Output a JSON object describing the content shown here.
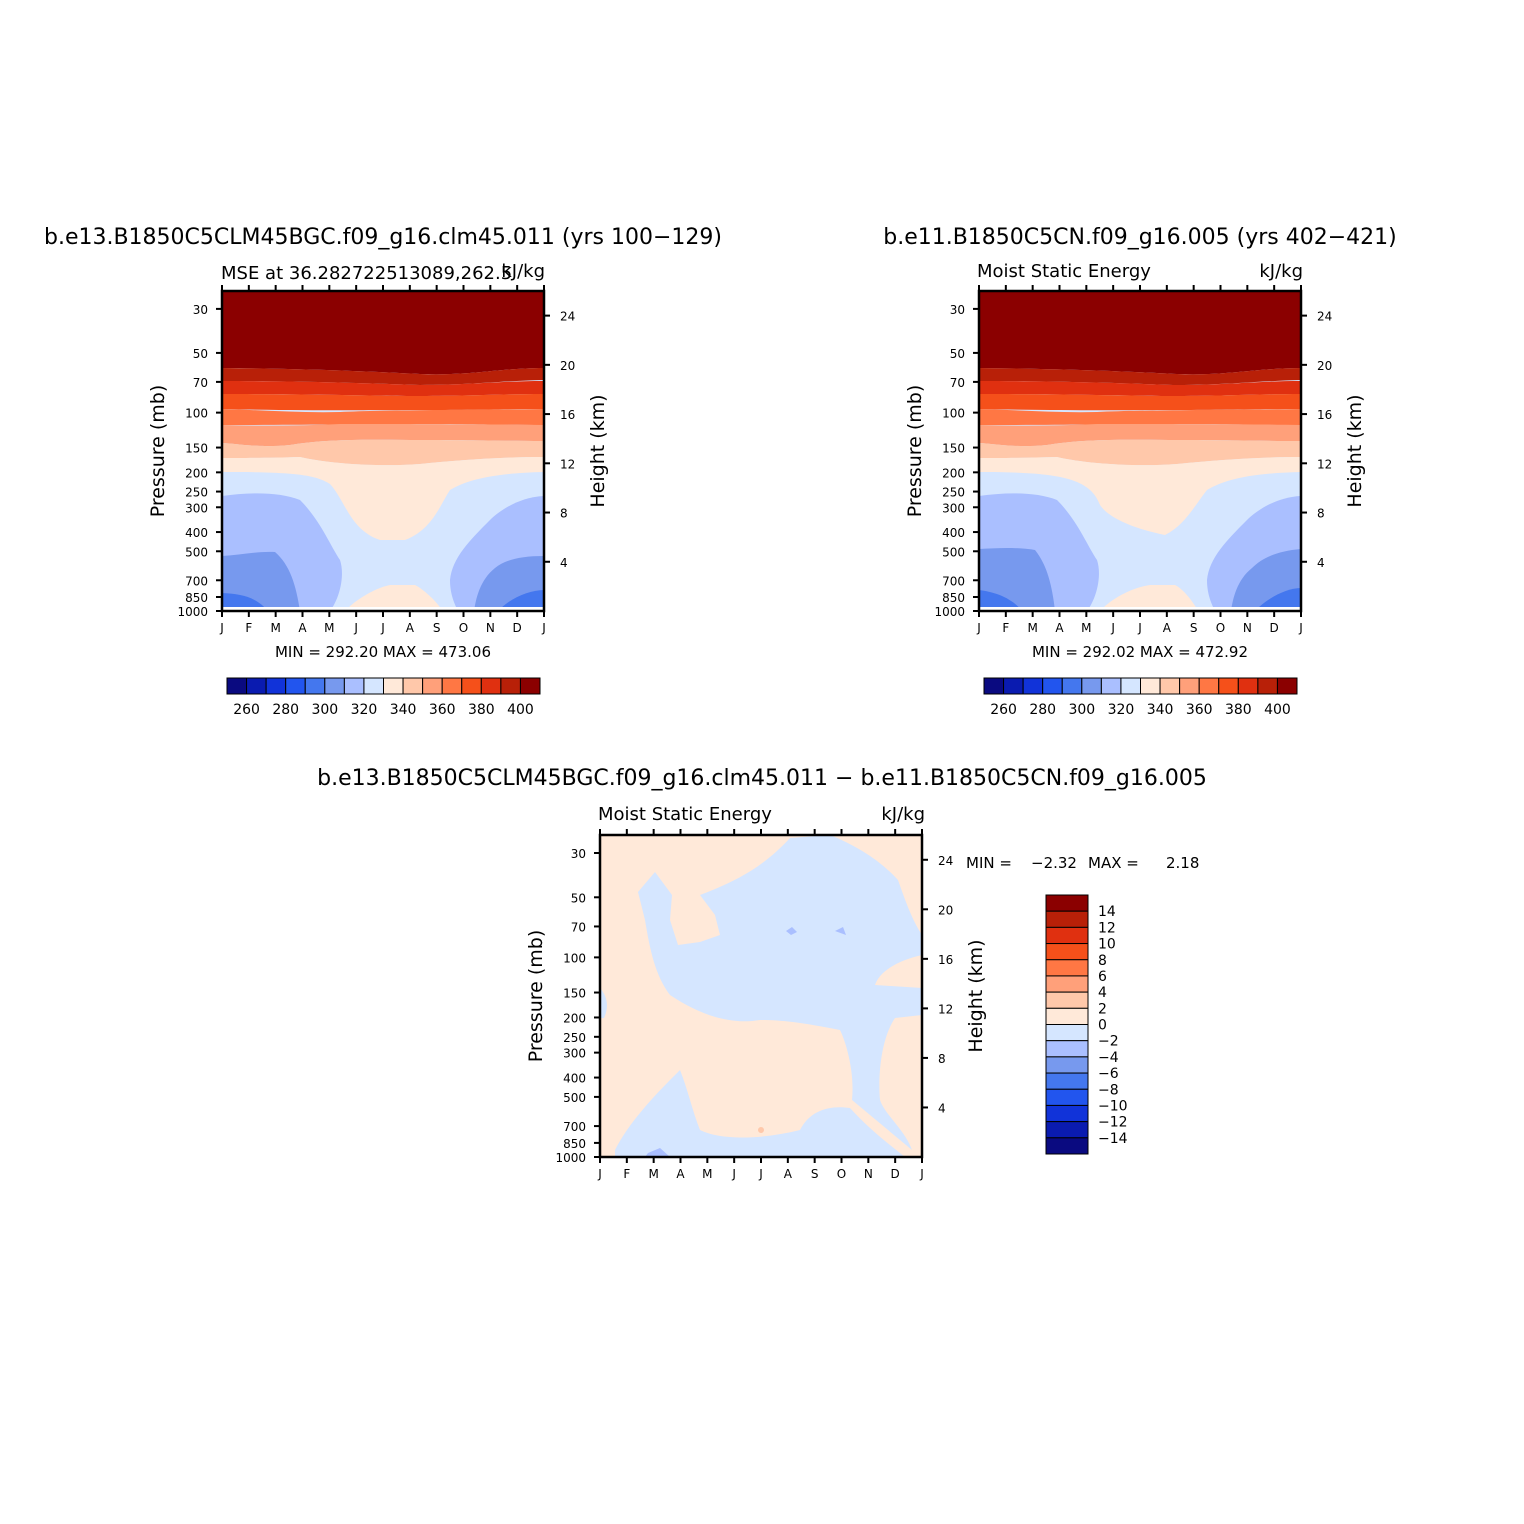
{
  "months": [
    "J",
    "F",
    "M",
    "A",
    "M",
    "J",
    "J",
    "A",
    "S",
    "O",
    "N",
    "D",
    "J"
  ],
  "pressure_ticks": [
    "30",
    "50",
    "70",
    "100",
    "150",
    "200",
    "250",
    "300",
    "400",
    "500",
    "700",
    "850",
    "1000"
  ],
  "y_label_left": "Pressure (mb)",
  "y_label_right": "Height (km)",
  "palette": {
    "bands": [
      "#0a0a80",
      "#0a1bb0",
      "#1133d9",
      "#2255ee",
      "#4477ee",
      "#7799ee",
      "#aabfff",
      "#d5e6ff",
      "#ffe9d9",
      "#ffc8aa",
      "#ffa07a",
      "#ff7744",
      "#f5501a",
      "#e03010",
      "#b82008",
      "#8b0000"
    ],
    "labels": [
      "260",
      "280",
      "300",
      "320",
      "340",
      "360",
      "380",
      "400"
    ]
  },
  "diff_palette": {
    "bands": [
      "#8b0000",
      "#b82008",
      "#e03010",
      "#f5501a",
      "#ff7744",
      "#ffa07a",
      "#ffc8aa",
      "#ffe9d9",
      "#d5e6ff",
      "#aabfff",
      "#7799ee",
      "#4477ee",
      "#2255ee",
      "#1133d9",
      "#0a1bb0",
      "#0a0a80"
    ],
    "labels": [
      "14",
      "12",
      "10",
      "8",
      "6",
      "4",
      "2",
      "0",
      "−2",
      "−4",
      "−6",
      "−8",
      "−10",
      "−12",
      "−14"
    ]
  },
  "chart_data": [
    {
      "type": "heatmap",
      "title": "b.e13.B1850C5CLM45BGC.f09_g16.clm45.011 (yrs 100−129)",
      "subtitle_left": "MSE at 36.282722513089,262.5",
      "subtitle_right": "kJ/kg",
      "stats": "MIN = 292.20 MAX = 473.06",
      "x": "months",
      "y_left": [
        30,
        50,
        70,
        100,
        150,
        200,
        250,
        300,
        400,
        500,
        700,
        850,
        1000
      ],
      "y_right_km": [
        4,
        8,
        12,
        16,
        20,
        24
      ],
      "colorbar_ticks": [
        260,
        280,
        300,
        320,
        340,
        360,
        380,
        400
      ]
    },
    {
      "type": "heatmap",
      "title": "b.e11.B1850C5CN.f09_g16.005 (yrs 402−421)",
      "subtitle_left": "Moist Static Energy",
      "subtitle_right": "kJ/kg",
      "stats": "MIN = 292.02 MAX = 472.92",
      "x": "months",
      "y_left": [
        30,
        50,
        70,
        100,
        150,
        200,
        250,
        300,
        400,
        500,
        700,
        850,
        1000
      ],
      "y_right_km": [
        4,
        8,
        12,
        16,
        20,
        24
      ],
      "colorbar_ticks": [
        260,
        280,
        300,
        320,
        340,
        360,
        380,
        400
      ]
    },
    {
      "type": "heatmap",
      "title": "b.e13.B1850C5CLM45BGC.f09_g16.clm45.011 − b.e11.B1850C5CN.f09_g16.005",
      "subtitle_left": "Moist Static Energy",
      "subtitle_right": "kJ/kg",
      "stats_min_label": "MIN =",
      "stats_min": "−2.32",
      "stats_max_label": "MAX =",
      "stats_max": "2.18",
      "x": "months",
      "y_left": [
        30,
        50,
        70,
        100,
        150,
        200,
        250,
        300,
        400,
        500,
        700,
        850,
        1000
      ],
      "y_right_km": [
        4,
        8,
        12,
        16,
        20,
        24
      ],
      "colorbar_ticks": [
        14,
        12,
        10,
        8,
        6,
        4,
        2,
        0,
        -2,
        -4,
        -6,
        -8,
        -10,
        -12,
        -14
      ]
    }
  ]
}
